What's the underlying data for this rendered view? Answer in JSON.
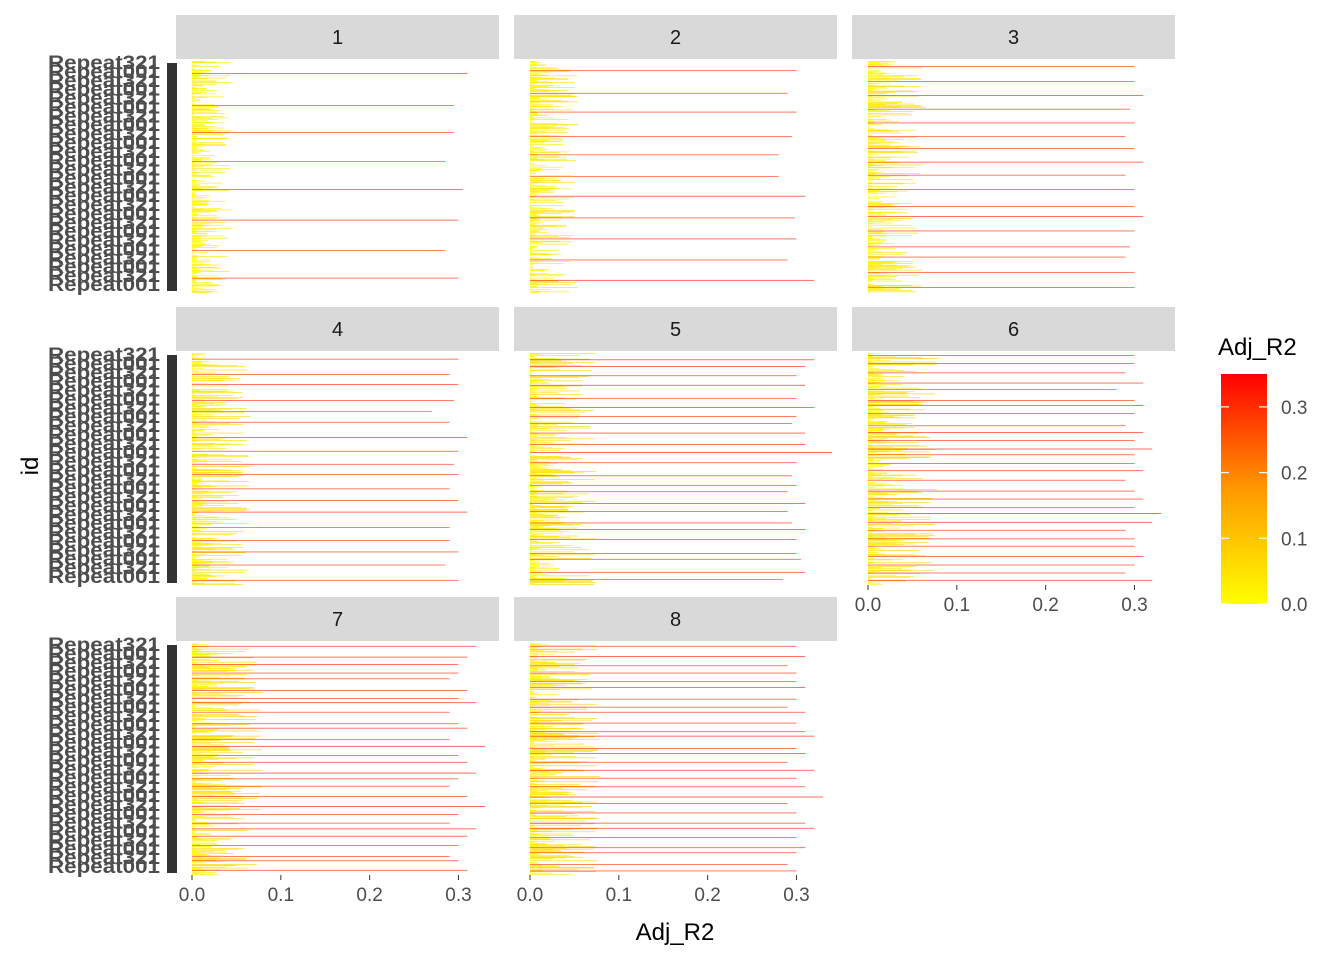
{
  "chart_data": {
    "type": "bar",
    "orientation": "horizontal",
    "facet_variable": "facet",
    "facets": [
      "1",
      "2",
      "3",
      "4",
      "5",
      "6",
      "7",
      "8"
    ],
    "facet_layout": "3 columns x 3 rows, free y scales",
    "xlabel": "Adj_R2",
    "ylabel": "id",
    "xlim": [
      0,
      0.34
    ],
    "x_ticks": [
      0.0,
      0.1,
      0.2,
      0.3
    ],
    "x_tick_labels": [
      "0.0",
      "0.1",
      "0.2",
      "0.3"
    ],
    "y_tick_labels_visible": [
      "Repeat001",
      "Repeat321"
    ],
    "fill": {
      "variable": "Adj_R2",
      "gradient_low": "#ffff00",
      "gradient_high": "#ff0000",
      "range": [
        0,
        0.35
      ]
    },
    "legend": {
      "title": "Adj_R2",
      "position": "right",
      "breaks": [
        0.0,
        0.1,
        0.2,
        0.3
      ],
      "labels": [
        "0.0",
        "0.1",
        "0.2",
        "0.3"
      ]
    },
    "colors": {
      "strip_background": "#d9d9d9",
      "panel_background": "#ffffff",
      "tick_text": "#4d4d4d"
    },
    "series": [
      {
        "facet": "1",
        "high_values": [
          0.3,
          0.285,
          0.3,
          0.305,
          0.285,
          0.295,
          0.295,
          0.31
        ],
        "low_range": [
          0,
          0.045
        ]
      },
      {
        "facet": "2",
        "high_values": [
          0.32,
          0.29,
          0.3,
          0.298,
          0.31,
          0.28,
          0.28,
          0.295,
          0.3,
          0.29,
          0.3
        ],
        "low_range": [
          0,
          0.055
        ]
      },
      {
        "facet": "3",
        "high_values": [
          0.3,
          0.3,
          0.29,
          0.295,
          0.3,
          0.31,
          0.3,
          0.3,
          0.29,
          0.31,
          0.3,
          0.29,
          0.3,
          0.295,
          0.31,
          0.3,
          0.3
        ],
        "low_range": [
          0,
          0.065
        ]
      },
      {
        "facet": "4",
        "high_values": [
          0.3,
          0.285,
          0.3,
          0.29,
          0.29,
          0.31,
          0.3,
          0.29,
          0.3,
          0.295,
          0.3,
          0.31,
          0.29,
          0.27,
          0.295,
          0.3,
          0.29,
          0.3
        ],
        "low_range": [
          0,
          0.07
        ]
      },
      {
        "facet": "5",
        "high_values": [
          0.285,
          0.31,
          0.305,
          0.3,
          0.3,
          0.31,
          0.295,
          0.29,
          0.31,
          0.29,
          0.3,
          0.295,
          0.3,
          0.34,
          0.31,
          0.31,
          0.295,
          0.3,
          0.32,
          0.3,
          0.31,
          0.3,
          0.31,
          0.32
        ],
        "low_range": [
          0,
          0.075
        ]
      },
      {
        "facet": "6",
        "high_values": [
          0.32,
          0.29,
          0.3,
          0.31,
          0.3,
          0.3,
          0.29,
          0.32,
          0.33,
          0.3,
          0.31,
          0.3,
          0.29,
          0.31,
          0.3,
          0.3,
          0.32,
          0.3,
          0.31,
          0.29,
          0.3,
          0.31,
          0.3,
          0.28,
          0.31,
          0.29,
          0.3,
          0.3
        ],
        "low_range": [
          0,
          0.08
        ]
      },
      {
        "facet": "7",
        "high_values": [
          0.31,
          0.3,
          0.29,
          0.3,
          0.31,
          0.32,
          0.29,
          0.3,
          0.33,
          0.31,
          0.29,
          0.3,
          0.32,
          0.31,
          0.3,
          0.33,
          0.29,
          0.31,
          0.3,
          0.29,
          0.32,
          0.3,
          0.31,
          0.29,
          0.3,
          0.3,
          0.31,
          0.32
        ],
        "low_range": [
          0,
          0.08
        ]
      },
      {
        "facet": "8",
        "high_values": [
          0.3,
          0.29,
          0.3,
          0.31,
          0.3,
          0.32,
          0.31,
          0.3,
          0.29,
          0.33,
          0.31,
          0.3,
          0.32,
          0.29,
          0.31,
          0.3,
          0.32,
          0.31,
          0.3,
          0.31,
          0.29,
          0.3,
          0.31,
          0.3,
          0.3,
          0.29,
          0.31,
          0.3
        ],
        "low_range": [
          0,
          0.08
        ]
      }
    ]
  }
}
